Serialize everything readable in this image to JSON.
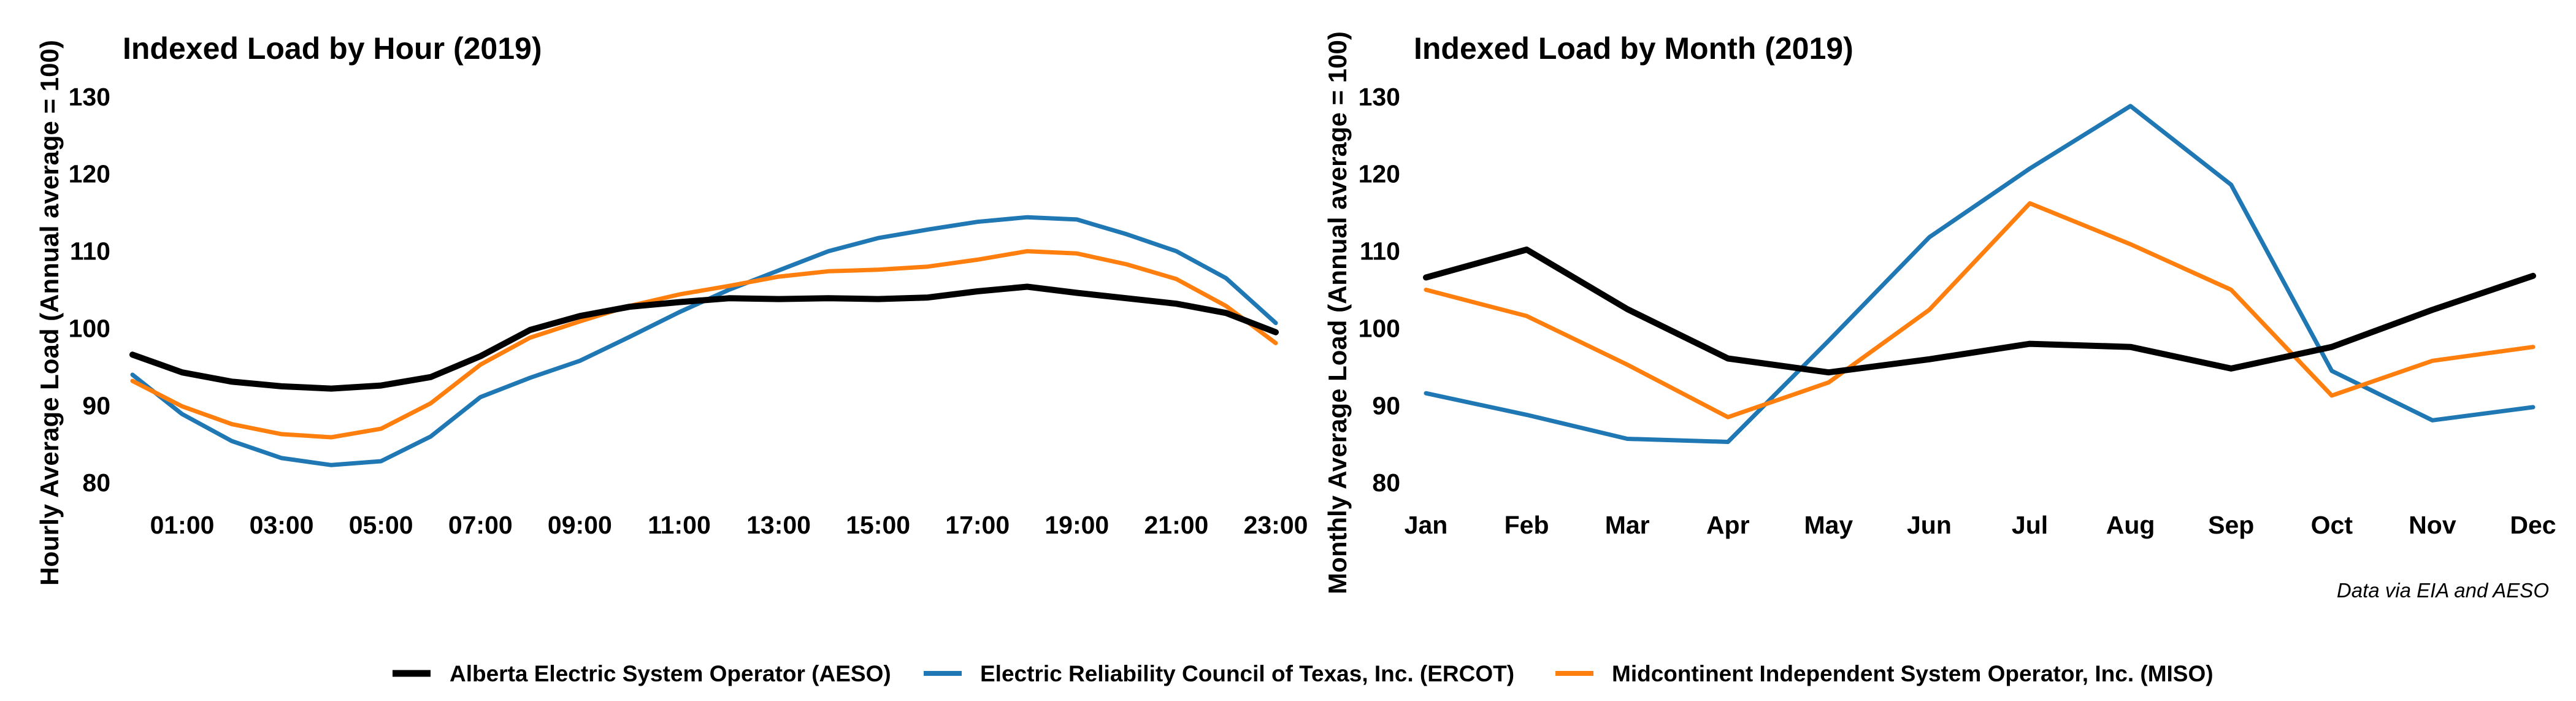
{
  "colors": {
    "AESO": "#000000",
    "ERCOT": "#1f77b4",
    "MISO": "#ff7f0e"
  },
  "legend": [
    {
      "key": "AESO",
      "label": "Alberta Electric System Operator (AESO)"
    },
    {
      "key": "ERCOT",
      "label": "Electric Reliability Council of Texas, Inc. (ERCOT)"
    },
    {
      "key": "MISO",
      "label": "Midcontinent Independent System Operator, Inc. (MISO)"
    }
  ],
  "caption": "Data via EIA and AESO",
  "chart_data": [
    {
      "type": "line",
      "title": "Indexed Load by Hour (2019)",
      "xlabel": "",
      "ylabel": "Hourly Average Load (Annual average = 100)",
      "x": [
        "00:00",
        "01:00",
        "02:00",
        "03:00",
        "04:00",
        "05:00",
        "06:00",
        "07:00",
        "08:00",
        "09:00",
        "10:00",
        "11:00",
        "12:00",
        "13:00",
        "14:00",
        "15:00",
        "16:00",
        "17:00",
        "18:00",
        "19:00",
        "20:00",
        "21:00",
        "22:00",
        "23:00"
      ],
      "x_tick_labels": [
        "01:00",
        "03:00",
        "05:00",
        "07:00",
        "09:00",
        "11:00",
        "13:00",
        "15:00",
        "17:00",
        "19:00",
        "21:00",
        "23:00"
      ],
      "y_ticks": [
        80,
        90,
        100,
        110,
        120,
        130
      ],
      "ylim": [
        77,
        133
      ],
      "grid": false,
      "series": [
        {
          "key": "AESO",
          "name": "Alberta Electric System Operator (AESO)",
          "values": [
            96.6,
            94.3,
            93.1,
            92.5,
            92.2,
            92.6,
            93.7,
            96.4,
            99.8,
            101.6,
            102.8,
            103.4,
            103.9,
            103.8,
            103.9,
            103.8,
            104.0,
            104.8,
            105.4,
            104.6,
            103.9,
            103.2,
            102.0,
            99.5
          ]
        },
        {
          "key": "ERCOT",
          "name": "Electric Reliability Council of Texas, Inc. (ERCOT)",
          "values": [
            94.0,
            88.9,
            85.4,
            83.2,
            82.3,
            82.8,
            86.0,
            91.1,
            93.6,
            95.8,
            98.9,
            102.1,
            105.0,
            107.5,
            110.0,
            111.7,
            112.8,
            113.8,
            114.4,
            114.1,
            112.2,
            110.0,
            106.5,
            100.7
          ]
        },
        {
          "key": "MISO",
          "name": "Midcontinent Independent System Operator, Inc. (MISO)",
          "values": [
            93.2,
            89.9,
            87.6,
            86.3,
            85.9,
            87.0,
            90.3,
            95.3,
            98.8,
            100.9,
            102.9,
            104.4,
            105.5,
            106.7,
            107.4,
            107.6,
            108.0,
            108.9,
            110.0,
            109.7,
            108.3,
            106.4,
            102.9,
            98.1
          ]
        }
      ]
    },
    {
      "type": "line",
      "title": "Indexed Load by Month (2019)",
      "xlabel": "",
      "ylabel": "Monthly Average Load (Annual average = 100)",
      "x": [
        "Jan",
        "Feb",
        "Mar",
        "Apr",
        "May",
        "Jun",
        "Jul",
        "Aug",
        "Sep",
        "Oct",
        "Nov",
        "Dec"
      ],
      "x_tick_labels": [
        "Jan",
        "Feb",
        "Mar",
        "Apr",
        "May",
        "Jun",
        "Jul",
        "Aug",
        "Sep",
        "Oct",
        "Nov",
        "Dec"
      ],
      "y_ticks": [
        80,
        90,
        100,
        110,
        120,
        130
      ],
      "ylim": [
        77,
        133
      ],
      "grid": false,
      "series": [
        {
          "key": "AESO",
          "name": "Alberta Electric System Operator (AESO)",
          "values": [
            106.6,
            110.2,
            102.5,
            96.1,
            94.3,
            96.0,
            98.0,
            97.6,
            94.8,
            97.6,
            102.4,
            106.8
          ]
        },
        {
          "key": "ERCOT",
          "name": "Electric Reliability Council of Texas, Inc. (ERCOT)",
          "values": [
            91.6,
            88.8,
            85.7,
            85.3,
            98.4,
            111.8,
            120.7,
            128.8,
            118.6,
            94.5,
            88.1,
            89.8
          ]
        },
        {
          "key": "MISO",
          "name": "Midcontinent Independent System Operator, Inc. (MISO)",
          "values": [
            105.0,
            101.6,
            95.3,
            88.5,
            93.0,
            102.4,
            116.2,
            110.9,
            105.0,
            91.3,
            95.8,
            97.6
          ]
        }
      ]
    }
  ]
}
